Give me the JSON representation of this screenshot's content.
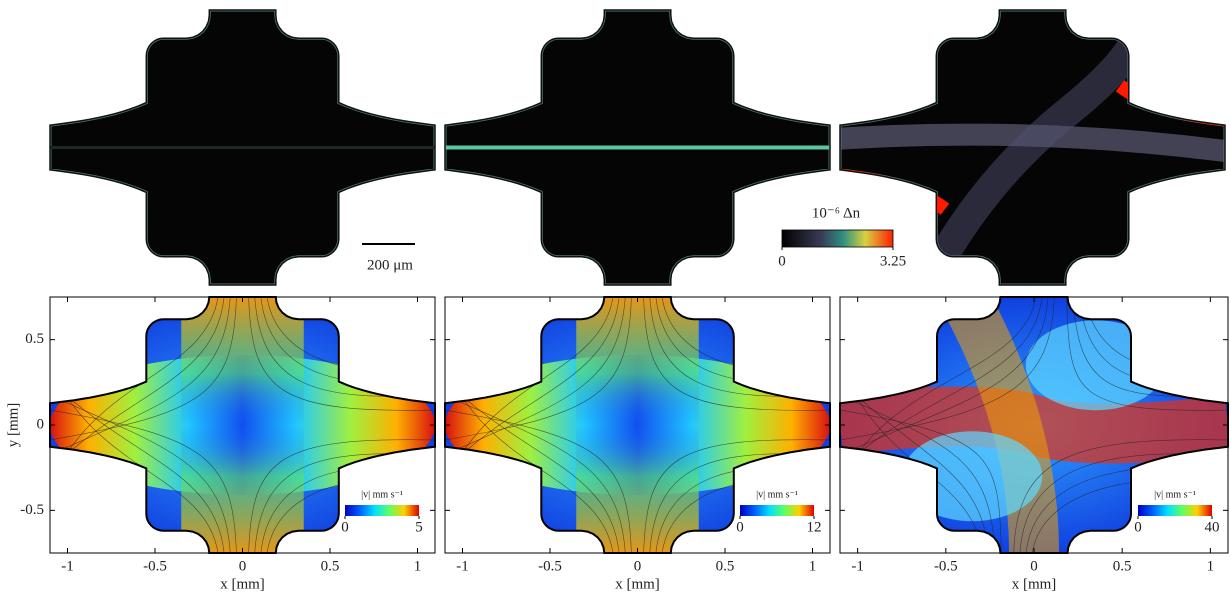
{
  "top_row": {
    "scale_bar": "200 μm",
    "colorbar": {
      "label": "10⁻⁶ Δn",
      "min": 0,
      "max": 3.25
    }
  },
  "bottom_row": {
    "x_label": "x [mm]",
    "y_label": "y [mm]",
    "xlim": [
      -1.1,
      1.1
    ],
    "ylim": [
      -0.75,
      0.75
    ],
    "xticks": [
      -1,
      -0.5,
      0,
      0.5,
      1
    ],
    "yticks": [
      -0.5,
      0,
      0.5
    ],
    "panels": [
      {
        "colorbar_label": "|v| mm s⁻¹",
        "colorbar_min": 0,
        "colorbar_max": 5
      },
      {
        "colorbar_label": "|v| mm s⁻¹",
        "colorbar_min": 0,
        "colorbar_max": 12
      },
      {
        "colorbar_label": "|v| mm s⁻¹",
        "colorbar_min": 0,
        "colorbar_max": 40
      }
    ]
  }
}
